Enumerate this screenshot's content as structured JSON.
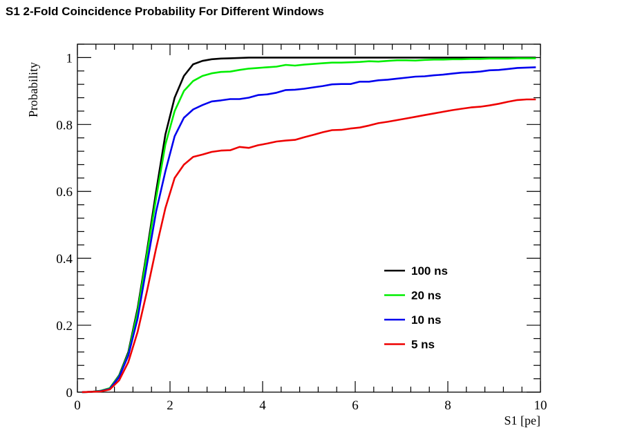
{
  "title": "S1 2-Fold Coincidence Probability For Different Windows",
  "chart_data": {
    "type": "line",
    "title": "S1 2-Fold Coincidence Probability For Different Windows",
    "xlabel": "S1 [pe]",
    "ylabel": "Probability",
    "xlim": [
      0,
      10
    ],
    "ylim": [
      0,
      1.04
    ],
    "x_major_ticks": [
      0,
      2,
      4,
      6,
      8,
      10
    ],
    "x_tick_labels": [
      "0",
      "2",
      "4",
      "6",
      "8",
      "10"
    ],
    "y_major_ticks": [
      0,
      0.2,
      0.4,
      0.6,
      0.8,
      1
    ],
    "y_tick_labels": [
      "0",
      "0.2",
      "0.4",
      "0.6",
      "0.8",
      "1"
    ],
    "grid": false,
    "legend_position": "lower-right",
    "series": [
      {
        "name": "100 ns",
        "color": "#000000",
        "x": [
          0.1,
          0.3,
          0.5,
          0.7,
          0.9,
          1.1,
          1.3,
          1.5,
          1.7,
          1.9,
          2.1,
          2.3,
          2.5,
          2.7,
          2.9,
          3.1,
          3.3,
          3.5,
          3.7,
          3.9,
          4.5,
          5.5,
          6.5,
          7.5,
          8.5,
          9.9
        ],
        "y": [
          0.0,
          0.001,
          0.004,
          0.012,
          0.05,
          0.12,
          0.25,
          0.42,
          0.6,
          0.77,
          0.88,
          0.945,
          0.98,
          0.99,
          0.995,
          0.997,
          0.998,
          0.999,
          1.0,
          1.0,
          1.0,
          1.0,
          1.0,
          1.0,
          1.0,
          1.0
        ]
      },
      {
        "name": "20 ns",
        "color": "#00ee00",
        "x": [
          0.1,
          0.3,
          0.5,
          0.7,
          0.9,
          1.1,
          1.3,
          1.5,
          1.7,
          1.9,
          2.1,
          2.3,
          2.5,
          2.7,
          2.9,
          3.1,
          3.3,
          3.5,
          3.7,
          3.9,
          4.1,
          4.3,
          4.5,
          4.7,
          4.9,
          5.1,
          5.3,
          5.5,
          5.7,
          5.9,
          6.1,
          6.3,
          6.5,
          6.7,
          6.9,
          7.1,
          7.3,
          7.5,
          7.7,
          7.9,
          8.1,
          8.3,
          8.5,
          8.7,
          8.9,
          9.1,
          9.3,
          9.5,
          9.7,
          9.9
        ],
        "y": [
          0.0,
          0.001,
          0.004,
          0.012,
          0.048,
          0.115,
          0.24,
          0.41,
          0.58,
          0.74,
          0.84,
          0.9,
          0.93,
          0.945,
          0.953,
          0.957,
          0.958,
          0.963,
          0.967,
          0.969,
          0.971,
          0.973,
          0.978,
          0.976,
          0.979,
          0.981,
          0.983,
          0.985,
          0.985,
          0.986,
          0.987,
          0.989,
          0.988,
          0.99,
          0.992,
          0.992,
          0.991,
          0.993,
          0.994,
          0.994,
          0.995,
          0.995,
          0.996,
          0.996,
          0.997,
          0.997,
          0.997,
          0.998,
          0.998,
          0.998
        ]
      },
      {
        "name": "10 ns",
        "color": "#0000ee",
        "x": [
          0.1,
          0.3,
          0.5,
          0.7,
          0.9,
          1.1,
          1.3,
          1.5,
          1.7,
          1.9,
          2.1,
          2.3,
          2.5,
          2.7,
          2.9,
          3.1,
          3.3,
          3.5,
          3.7,
          3.9,
          4.1,
          4.3,
          4.5,
          4.7,
          4.9,
          5.1,
          5.3,
          5.5,
          5.7,
          5.9,
          6.1,
          6.3,
          6.5,
          6.7,
          6.9,
          7.1,
          7.3,
          7.5,
          7.7,
          7.9,
          8.1,
          8.3,
          8.5,
          8.7,
          8.9,
          9.1,
          9.3,
          9.5,
          9.7,
          9.9
        ],
        "y": [
          0.0,
          0.001,
          0.003,
          0.01,
          0.045,
          0.11,
          0.22,
          0.38,
          0.54,
          0.66,
          0.765,
          0.82,
          0.845,
          0.858,
          0.869,
          0.872,
          0.876,
          0.876,
          0.88,
          0.888,
          0.89,
          0.895,
          0.903,
          0.904,
          0.907,
          0.911,
          0.915,
          0.92,
          0.921,
          0.921,
          0.928,
          0.928,
          0.932,
          0.934,
          0.937,
          0.94,
          0.943,
          0.944,
          0.947,
          0.949,
          0.952,
          0.955,
          0.956,
          0.958,
          0.962,
          0.963,
          0.966,
          0.969,
          0.97,
          0.971
        ]
      },
      {
        "name": "5 ns",
        "color": "#ee0000",
        "x": [
          0.1,
          0.3,
          0.5,
          0.7,
          0.9,
          1.1,
          1.3,
          1.5,
          1.7,
          1.9,
          2.1,
          2.3,
          2.5,
          2.7,
          2.9,
          3.1,
          3.3,
          3.5,
          3.7,
          3.9,
          4.1,
          4.3,
          4.5,
          4.7,
          4.9,
          5.1,
          5.3,
          5.5,
          5.7,
          5.9,
          6.1,
          6.3,
          6.5,
          6.7,
          6.9,
          7.1,
          7.3,
          7.5,
          7.7,
          7.9,
          8.1,
          8.3,
          8.5,
          8.7,
          8.9,
          9.1,
          9.3,
          9.5,
          9.7,
          9.9
        ],
        "y": [
          0.0,
          0.001,
          0.002,
          0.008,
          0.035,
          0.09,
          0.18,
          0.3,
          0.43,
          0.55,
          0.64,
          0.68,
          0.703,
          0.71,
          0.718,
          0.722,
          0.723,
          0.733,
          0.73,
          0.738,
          0.743,
          0.749,
          0.752,
          0.754,
          0.762,
          0.769,
          0.777,
          0.783,
          0.784,
          0.788,
          0.791,
          0.797,
          0.804,
          0.808,
          0.813,
          0.818,
          0.823,
          0.828,
          0.833,
          0.838,
          0.843,
          0.847,
          0.851,
          0.853,
          0.857,
          0.862,
          0.868,
          0.873,
          0.875,
          0.875
        ]
      }
    ]
  }
}
